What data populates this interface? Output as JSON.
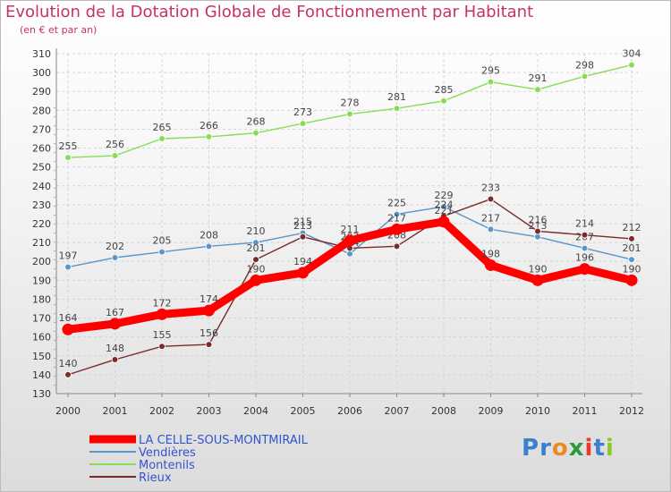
{
  "chart_data": {
    "type": "line",
    "title": "Evolution de la Dotation Globale de Fonctionnement par Habitant",
    "subtitle": "(en € et par an)",
    "x": [
      "2000",
      "2001",
      "2002",
      "2003",
      "2004",
      "2005",
      "2006",
      "2007",
      "2008",
      "2009",
      "2010",
      "2011",
      "2012"
    ],
    "ylim": [
      130,
      310
    ],
    "yticks": [
      130,
      140,
      150,
      160,
      170,
      180,
      190,
      200,
      210,
      220,
      230,
      240,
      250,
      260,
      270,
      280,
      290,
      300,
      310
    ],
    "grid": true,
    "legend_position": "bottom-left",
    "series": [
      {
        "name": "LA CELLE-SOUS-MONTMIRAIL",
        "color": "#ff0000",
        "values": [
          164,
          167,
          172,
          174,
          190,
          194,
          211,
          217,
          221,
          198,
          190,
          196,
          190
        ]
      },
      {
        "name": "Vendières",
        "color": "#5a96c8",
        "values": [
          197,
          202,
          205,
          208,
          210,
          215,
          204,
          225,
          229,
          217,
          213,
          207,
          201
        ]
      },
      {
        "name": "Montenils",
        "color": "#88dd55",
        "values": [
          255,
          256,
          265,
          266,
          268,
          273,
          278,
          281,
          285,
          295,
          291,
          298,
          304
        ]
      },
      {
        "name": "Rieux",
        "color": "#7a2a2a",
        "values": [
          140,
          148,
          155,
          156,
          201,
          213,
          207,
          208,
          224,
          233,
          216,
          214,
          212
        ]
      }
    ]
  },
  "logo": {
    "text": "Proxiti",
    "letters": [
      "P",
      "r",
      "o",
      "x",
      "i",
      "t",
      "i"
    ],
    "colors": [
      "#3a7fd0",
      "#3a7fd0",
      "#ee8822",
      "#2a9a3a",
      "#e83a2a",
      "#3a7fd0",
      "#88cc22"
    ]
  }
}
